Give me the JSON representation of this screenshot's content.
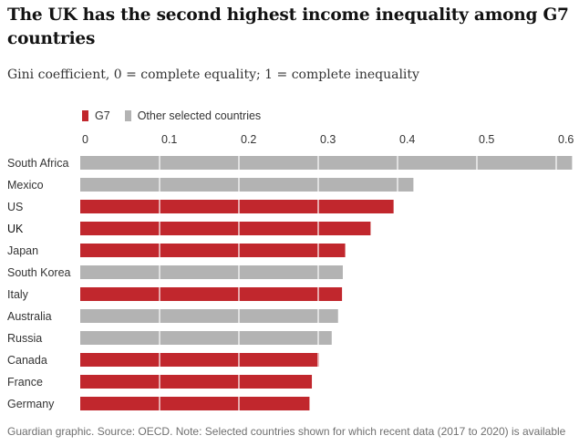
{
  "header": {
    "title": "The UK has the second highest income inequality among G7 countries",
    "subtitle": "Gini coefficient, 0 = complete equality; 1 = complete inequality"
  },
  "legend": {
    "g7_label": "G7",
    "other_label": "Other selected countries"
  },
  "colors": {
    "g7": "#c1272d",
    "other": "#b3b3b3",
    "uk_highlight": "#121212"
  },
  "footer": {
    "source": "Guardian graphic. Source: OECD. Note: Selected countries shown for which recent data (2017 to 2020) is available"
  },
  "chart_data": {
    "type": "bar",
    "orientation": "horizontal",
    "title": "The UK has the second highest income inequality among G7 countries",
    "xlabel": "Gini coefficient, 0 = complete equality; 1 = complete inequality",
    "ylabel": "",
    "xlim": [
      0,
      0.62
    ],
    "ticks": [
      0,
      0.1,
      0.2,
      0.3,
      0.4,
      0.5,
      0.6
    ],
    "tick_labels": [
      "0",
      "0.1",
      "0.2",
      "0.3",
      "0.4",
      "0.5",
      "0.6"
    ],
    "grid": true,
    "legend_position": "top-left",
    "categories": [
      "South Africa",
      "Mexico",
      "US",
      "UK",
      "Japan",
      "South Korea",
      "Italy",
      "Australia",
      "Russia",
      "Canada",
      "France",
      "Germany"
    ],
    "values": [
      0.62,
      0.42,
      0.395,
      0.366,
      0.334,
      0.331,
      0.33,
      0.325,
      0.317,
      0.301,
      0.292,
      0.289
    ],
    "groups": [
      "Other selected countries",
      "Other selected countries",
      "G7",
      "G7",
      "G7",
      "Other selected countries",
      "G7",
      "Other selected countries",
      "Other selected countries",
      "G7",
      "G7",
      "G7"
    ]
  }
}
